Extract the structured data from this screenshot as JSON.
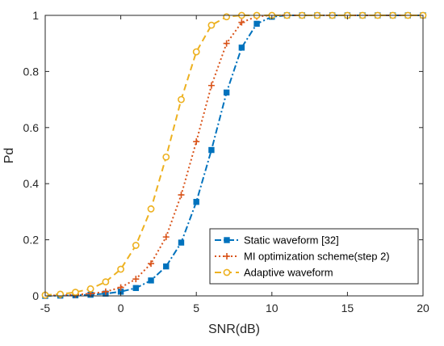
{
  "chart_data": {
    "type": "line",
    "xlabel": "SNR(dB)",
    "ylabel": "Pd",
    "xlim": [
      -5,
      20
    ],
    "ylim": [
      0,
      1
    ],
    "xticks": [
      -5,
      0,
      5,
      10,
      15,
      20
    ],
    "yticks": [
      0,
      0.2,
      0.4,
      0.6,
      0.8,
      1
    ],
    "grid": false,
    "legend_position": "bottom-right",
    "x": [
      -5,
      -4,
      -3,
      -2,
      -1,
      0,
      1,
      2,
      3,
      4,
      5,
      6,
      7,
      8,
      9,
      10,
      11,
      12,
      13,
      14,
      15,
      16,
      17,
      18,
      19,
      20
    ],
    "series": [
      {
        "name": "Static waveform [32]",
        "color": "#0072BD",
        "line_style": "dash-dot",
        "marker": "square",
        "values": [
          0,
          0.001,
          0.002,
          0.004,
          0.008,
          0.015,
          0.028,
          0.055,
          0.105,
          0.19,
          0.335,
          0.52,
          0.725,
          0.885,
          0.97,
          0.995,
          1,
          1,
          1,
          1,
          1,
          1,
          1,
          1,
          1,
          1
        ]
      },
      {
        "name": "MI optimization scheme(step 2)",
        "color": "#D95319",
        "line_style": "dotted",
        "marker": "plus",
        "values": [
          0.001,
          0.002,
          0.004,
          0.008,
          0.015,
          0.03,
          0.06,
          0.115,
          0.21,
          0.36,
          0.55,
          0.75,
          0.9,
          0.975,
          0.996,
          1,
          1,
          1,
          1,
          1,
          1,
          1,
          1,
          1,
          1,
          1
        ]
      },
      {
        "name": "Adaptive waveform",
        "color": "#EDB120",
        "line_style": "dashed",
        "marker": "circle",
        "values": [
          0.003,
          0.006,
          0.013,
          0.025,
          0.05,
          0.095,
          0.18,
          0.31,
          0.495,
          0.7,
          0.87,
          0.965,
          0.995,
          1,
          1,
          1,
          1,
          1,
          1,
          1,
          1,
          1,
          1,
          1,
          1,
          1
        ]
      }
    ]
  }
}
